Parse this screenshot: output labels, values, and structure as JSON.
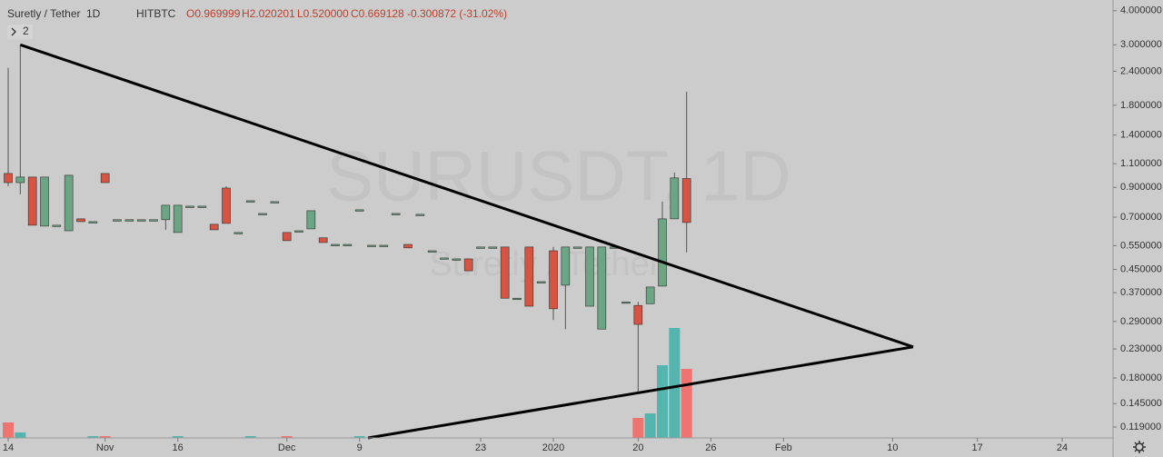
{
  "chart_data": {
    "type": "candlestick",
    "title": "Suretly / Tether",
    "interval": "1D",
    "exchange": "HITBTC",
    "ohlc_text": {
      "open": "O0.969999",
      "high": "H2.020201",
      "low": "L0.520000",
      "close": "C0.669128",
      "change": "-0.300872 (-31.02%)"
    },
    "indicator_count": 2,
    "watermark": {
      "symbol": "SURUSDT, 1D",
      "name": "Suretly / Tether"
    },
    "log_scale": true,
    "up_color": "#6ba583",
    "down_color": "#d75442",
    "volume_up_color": "#53b5ae",
    "volume_down_color": "#ef7470",
    "ylim": [
      0.1085,
      4.38
    ],
    "yticks": [
      {
        "value": 4.0,
        "label": "4.000000"
      },
      {
        "value": 3.0,
        "label": "3.000000"
      },
      {
        "value": 2.4,
        "label": "2.400000"
      },
      {
        "value": 1.8,
        "label": "1.800000"
      },
      {
        "value": 1.4,
        "label": "1.400000"
      },
      {
        "value": 1.1,
        "label": "1.100000"
      },
      {
        "value": 0.9,
        "label": "0.900000"
      },
      {
        "value": 0.7,
        "label": "0.700000"
      },
      {
        "value": 0.55,
        "label": "0.550000"
      },
      {
        "value": 0.45,
        "label": "0.450000"
      },
      {
        "value": 0.37,
        "label": "0.370000"
      },
      {
        "value": 0.29,
        "label": "0.290000"
      },
      {
        "value": 0.23,
        "label": "0.230000"
      },
      {
        "value": 0.18,
        "label": "0.180000"
      },
      {
        "value": 0.145,
        "label": "0.145000"
      },
      {
        "value": 0.119,
        "label": "0.119000"
      }
    ],
    "categories": [
      "14",
      null,
      null,
      null,
      null,
      null,
      null,
      null,
      "Nov",
      null,
      null,
      null,
      null,
      null,
      "16",
      null,
      null,
      null,
      null,
      null,
      null,
      null,
      null,
      "Dec",
      null,
      null,
      null,
      null,
      null,
      "9",
      null,
      null,
      null,
      null,
      null,
      null,
      null,
      null,
      null,
      "23",
      null,
      null,
      null,
      null,
      null,
      "2020",
      null,
      null,
      null,
      null,
      null,
      null,
      "20",
      null,
      null,
      null,
      null,
      null,
      "26",
      null,
      null,
      null,
      null,
      null,
      "Feb",
      null,
      null,
      null,
      null,
      null,
      null,
      null,
      null,
      "10",
      null,
      null,
      null,
      null,
      null,
      null,
      "17",
      null,
      null,
      null,
      null,
      null,
      null,
      "24"
    ],
    "open": [
      1.012,
      0.937,
      0.982,
      0.649,
      0.654,
      0.624,
      0.69,
      0.674,
      1.012,
      0.685,
      0.685,
      0.685,
      0.685,
      0.685,
      0.615,
      0.768,
      0.768,
      0.659,
      0.895,
      0.615,
      0.804,
      0.722,
      0.798,
      0.615,
      0.624,
      0.634,
      0.588,
      0.556,
      0.556,
      0.745,
      0.552,
      0.552,
      0.722,
      0.556,
      0.717,
      0.527,
      0.496,
      0.492,
      0.492,
      0.544,
      0.544,
      0.544,
      0.353,
      0.544,
      0.406,
      0.527,
      0.394,
      0.544,
      0.33,
      0.272,
      0.544,
      0.342,
      0.332,
      0.337,
      0.391,
      0.69,
      0.969999,
      null,
      null,
      null,
      null,
      null,
      null,
      null,
      null,
      null,
      null,
      null,
      null,
      null,
      null,
      null,
      null,
      null,
      null,
      null,
      null,
      null,
      null,
      null,
      null,
      null,
      null,
      null,
      null,
      null,
      null,
      null
    ],
    "high": [
      2.47,
      3.0,
      0.982,
      0.982,
      0.654,
      0.997,
      0.69,
      0.674,
      1.012,
      0.685,
      0.685,
      0.685,
      0.685,
      0.774,
      0.774,
      0.768,
      0.768,
      0.659,
      0.909,
      0.615,
      0.804,
      0.722,
      0.798,
      0.615,
      0.624,
      0.739,
      0.588,
      0.556,
      0.556,
      0.745,
      0.552,
      0.552,
      0.722,
      0.556,
      0.717,
      0.527,
      0.496,
      0.492,
      0.492,
      0.544,
      0.544,
      0.544,
      0.353,
      0.544,
      0.406,
      0.544,
      0.544,
      0.544,
      0.544,
      0.544,
      0.544,
      0.342,
      0.342,
      0.388,
      0.798,
      1.02,
      2.020201,
      null,
      null,
      null,
      null,
      null,
      null,
      null,
      null,
      null,
      null,
      null,
      null,
      null,
      null,
      null,
      null,
      null,
      null,
      null,
      null,
      null,
      null,
      null,
      null,
      null,
      null,
      null,
      null,
      null,
      null,
      null
    ],
    "low": [
      0.909,
      0.849,
      0.654,
      0.649,
      0.654,
      0.624,
      0.674,
      0.674,
      0.937,
      0.685,
      0.685,
      0.685,
      0.685,
      0.629,
      0.615,
      0.768,
      0.768,
      0.629,
      0.664,
      0.615,
      0.804,
      0.722,
      0.798,
      0.574,
      0.624,
      0.634,
      0.565,
      0.556,
      0.556,
      0.745,
      0.552,
      0.552,
      0.722,
      0.54,
      0.717,
      0.527,
      0.496,
      0.492,
      0.445,
      0.544,
      0.544,
      0.353,
      0.353,
      0.33,
      0.406,
      0.294,
      0.272,
      0.544,
      0.33,
      0.272,
      0.544,
      0.342,
      0.159,
      0.337,
      0.391,
      0.69,
      0.52,
      null,
      null,
      null,
      null,
      null,
      null,
      null,
      null,
      null,
      null,
      null,
      null,
      null,
      null,
      null,
      null,
      null,
      null,
      null,
      null,
      null,
      null,
      null,
      null,
      null,
      null,
      null,
      null,
      null,
      null,
      null
    ],
    "close": [
      0.937,
      0.982,
      0.654,
      0.982,
      0.654,
      0.997,
      0.674,
      0.674,
      0.937,
      0.685,
      0.685,
      0.685,
      0.685,
      0.774,
      0.774,
      0.768,
      0.768,
      0.629,
      0.664,
      0.615,
      0.804,
      0.722,
      0.798,
      0.574,
      0.624,
      0.739,
      0.565,
      0.556,
      0.556,
      0.745,
      0.552,
      0.552,
      0.722,
      0.54,
      0.717,
      0.527,
      0.496,
      0.492,
      0.445,
      0.544,
      0.544,
      0.353,
      0.353,
      0.33,
      0.406,
      0.323,
      0.544,
      0.544,
      0.544,
      0.544,
      0.544,
      0.342,
      0.283,
      0.388,
      0.69,
      0.975,
      0.669128,
      null,
      null,
      null,
      null,
      null,
      null,
      null,
      null,
      null,
      null,
      null,
      null,
      null,
      null,
      null,
      null,
      null,
      null,
      null,
      null,
      null,
      null,
      null,
      null,
      null,
      null,
      null,
      null,
      null,
      null,
      null
    ],
    "volume": [
      17,
      6,
      null,
      null,
      null,
      null,
      null,
      2,
      2,
      null,
      null,
      null,
      null,
      null,
      2,
      null,
      null,
      null,
      null,
      null,
      2,
      null,
      null,
      2,
      null,
      null,
      null,
      null,
      null,
      2,
      null,
      null,
      null,
      null,
      null,
      null,
      null,
      null,
      null,
      null,
      null,
      null,
      null,
      null,
      null,
      null,
      null,
      null,
      null,
      null,
      null,
      null,
      22,
      27,
      80,
      121,
      76,
      null,
      null,
      null,
      null,
      null,
      null,
      null,
      null,
      null,
      null,
      null,
      null,
      null,
      null,
      null,
      null,
      null,
      null,
      null,
      null,
      null,
      null,
      null,
      null,
      null,
      null,
      null,
      null,
      null,
      null,
      null
    ],
    "trendlines": [
      {
        "x": [
          1,
          74.7
        ],
        "y": [
          3.0,
          0.234
        ]
      },
      {
        "x": [
          29.7,
          74.7
        ],
        "y": [
          0.1085,
          0.234
        ]
      }
    ]
  }
}
